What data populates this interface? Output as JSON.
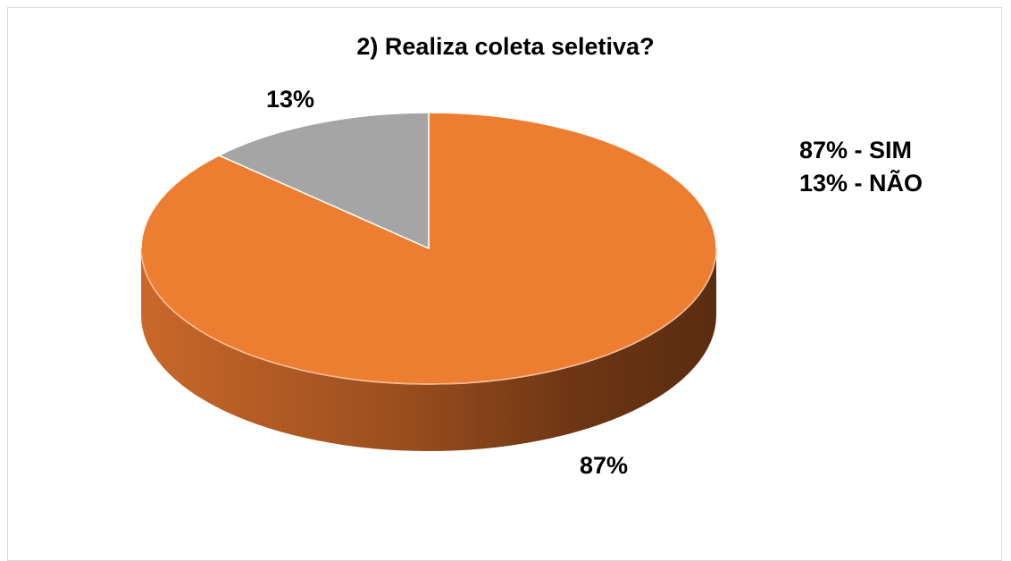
{
  "chart_data": {
    "type": "pie",
    "title": "2) Realiza coleta seletiva?",
    "categories": [
      "SIM",
      "NÃO"
    ],
    "values": [
      87,
      13
    ],
    "data_labels": [
      "87%",
      "13%"
    ],
    "legend": {
      "placement": "right",
      "entries": [
        "87% - SIM",
        "13% - NÃO"
      ]
    },
    "colors": [
      "#ED7D31",
      "#A5A5A5"
    ],
    "style": "3d"
  }
}
